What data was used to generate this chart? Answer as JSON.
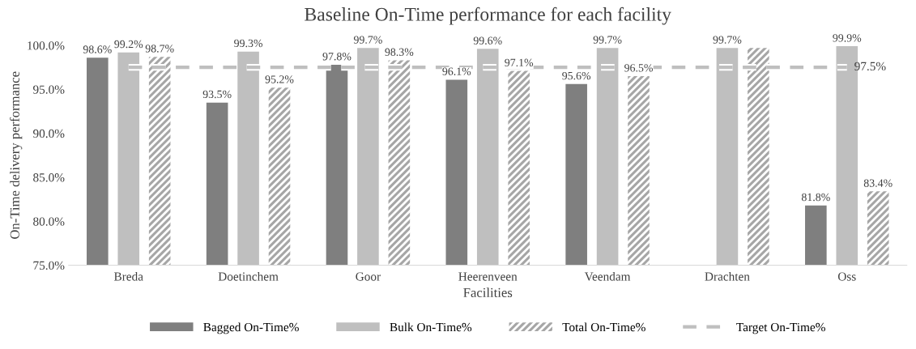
{
  "chart_data": {
    "type": "bar",
    "title": "Baseline On-Time performance for each facility",
    "xlabel": "Facilities",
    "ylabel": "On-Time delivery performance",
    "categories": [
      "Breda",
      "Doetinchem",
      "Goor",
      "Heerenveen",
      "Veendam",
      "Drachten",
      "Oss"
    ],
    "series": [
      {
        "name": "Bagged On-Time%",
        "color": "#7f7f7f",
        "values": [
          98.6,
          93.5,
          97.8,
          96.1,
          95.6,
          null,
          81.8
        ],
        "value_labels": [
          "98.6%",
          "93.5%",
          "97.8%",
          "96.1%",
          "95.6%",
          null,
          "81.8%"
        ]
      },
      {
        "name": "Bulk On-Time%",
        "color": "#bfbfbf",
        "values": [
          99.2,
          99.3,
          99.7,
          99.6,
          99.7,
          99.7,
          99.9
        ],
        "value_labels": [
          "99.2%",
          "99.3%",
          "99.7%",
          "99.6%",
          "99.7%",
          "99.7%",
          "99.9%"
        ]
      },
      {
        "name": "Total On-Time%",
        "color": "#a6a6a6",
        "values": [
          98.7,
          95.2,
          98.3,
          97.1,
          96.5,
          99.7,
          83.4
        ],
        "value_labels": [
          "98.7%",
          "95.2%",
          "98.3%",
          "97.1%",
          "96.5%",
          null,
          "83.4%"
        ]
      },
      {
        "name": "Target On-Time%",
        "type": "line",
        "line_style": "dashed",
        "color": "#bfbfbf",
        "values": [
          97.5,
          97.5,
          97.5,
          97.5,
          97.5,
          97.5,
          97.5
        ],
        "value_labels": [
          null,
          null,
          null,
          null,
          null,
          null,
          "97.5%"
        ]
      }
    ],
    "ylim": [
      75,
      100
    ],
    "yticks": [
      {
        "value": 75,
        "label": "75.0%"
      },
      {
        "value": 80,
        "label": "80.0%"
      },
      {
        "value": 85,
        "label": "85.0%"
      },
      {
        "value": 90,
        "label": "90.0%"
      },
      {
        "value": 95,
        "label": "95.0%"
      },
      {
        "value": 100,
        "label": "100.0%"
      }
    ],
    "grid": false,
    "legend": "bottom"
  }
}
